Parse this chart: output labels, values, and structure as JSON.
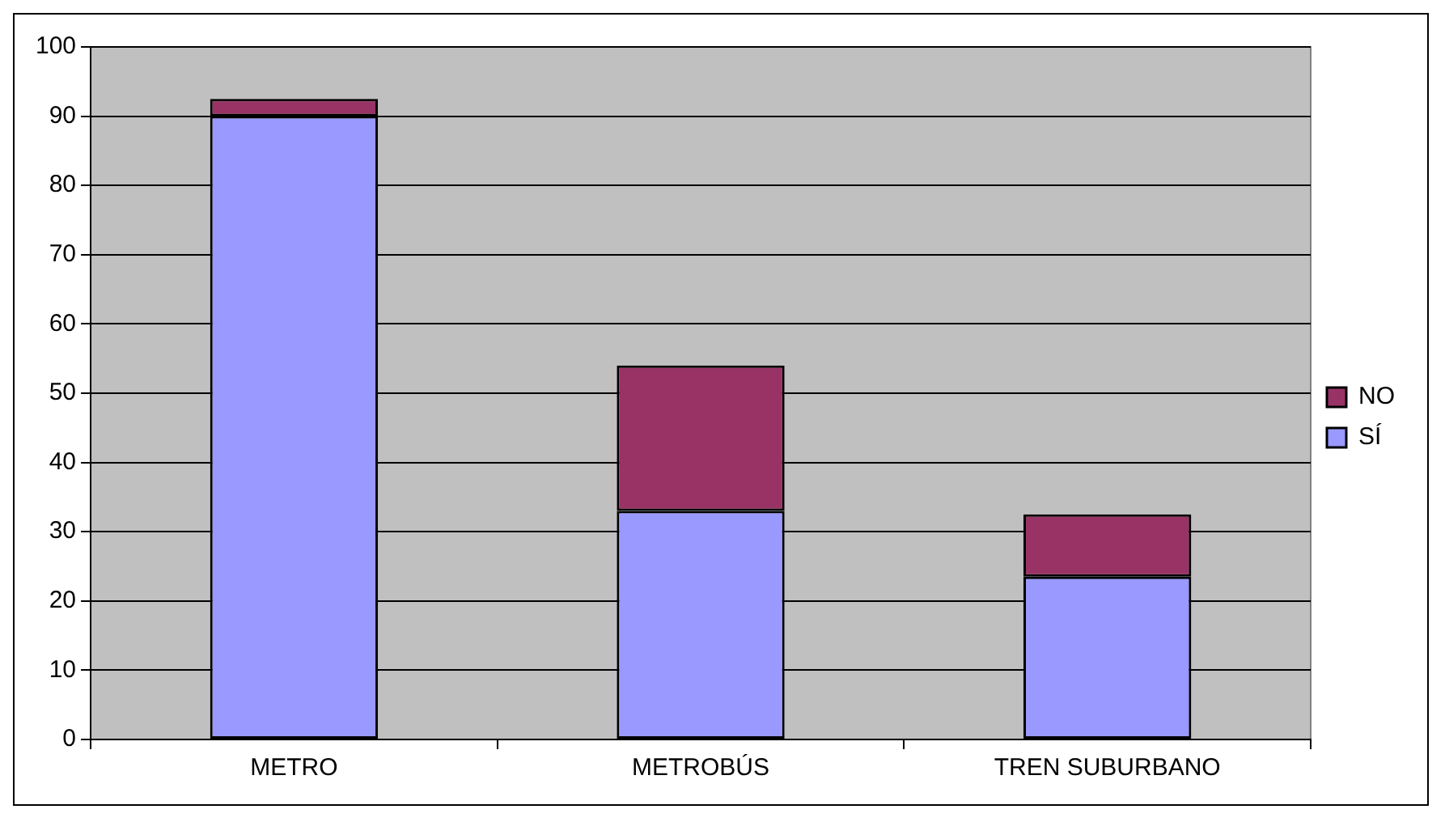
{
  "chart_data": {
    "type": "bar",
    "stacked": true,
    "categories": [
      "METRO",
      "METROBÚS",
      "TREN SUBURBANO"
    ],
    "series": [
      {
        "name": "SÍ",
        "color": "#9999ff",
        "values": [
          90,
          33,
          23.5
        ]
      },
      {
        "name": "NO",
        "color": "#993366",
        "values": [
          2.5,
          21,
          9
        ]
      }
    ],
    "ylim": [
      0,
      100
    ],
    "yticks": [
      0,
      10,
      20,
      30,
      40,
      50,
      60,
      70,
      80,
      90,
      100
    ],
    "grid": "y",
    "legend": "right"
  }
}
